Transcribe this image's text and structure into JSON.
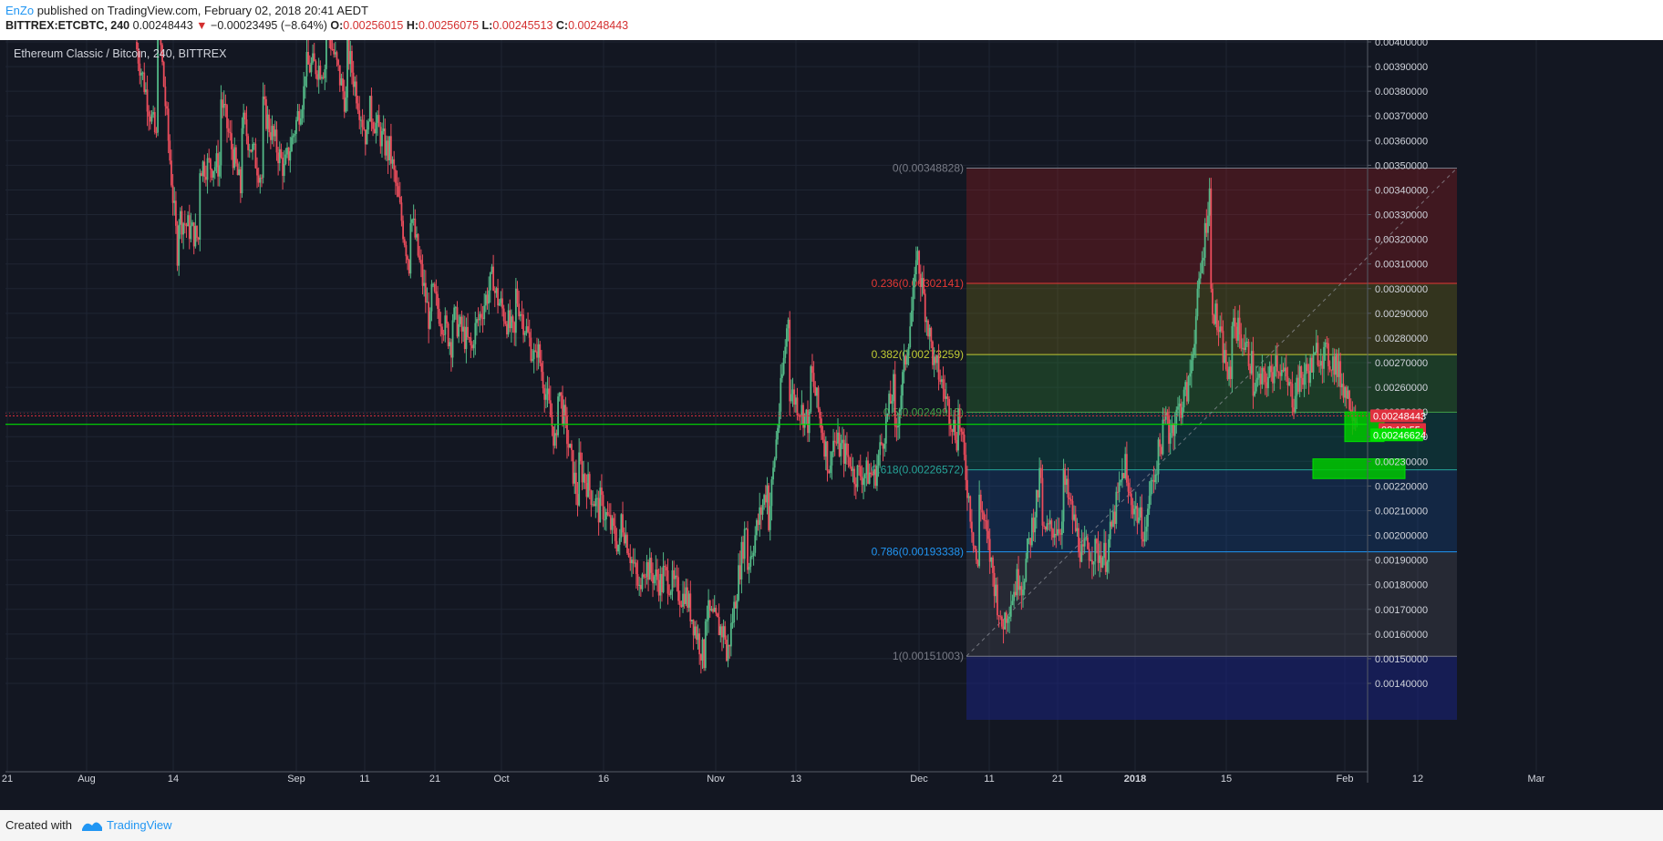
{
  "header": {
    "author": "EnZo",
    "published_text": "published on TradingView.com, February 02, 2018 20:41 AEDT",
    "symbol": "BITTREX:ETCBTC, 240",
    "last": "0.00248443",
    "change": "−0.00023495 (−8.64%)",
    "open_label": "O:",
    "open": "0.00256015",
    "high_label": "H:",
    "high": "0.00256075",
    "low_label": "L:",
    "low": "0.00245513",
    "close_label": "C:",
    "close": "0.00248443"
  },
  "chart_title": "Ethereum Classic / Bitcoin, 240, BITTREX",
  "footer": {
    "created_with": "Created with",
    "brand": "TradingView"
  },
  "colors": {
    "background": "#131722",
    "up": "#53b987",
    "down": "#eb4d5c",
    "price_line_red": "#e0303e",
    "price_line_green": "#00e000"
  },
  "chart_data": {
    "type": "candlestick",
    "ylim": [
      0.00135,
      0.0041
    ],
    "y_ticks": [
      "0.00400000",
      "0.00390000",
      "0.00380000",
      "0.00370000",
      "0.00360000",
      "0.00350000",
      "0.00340000",
      "0.00330000",
      "0.00320000",
      "0.00310000",
      "0.00300000",
      "0.00290000",
      "0.00280000",
      "0.00270000",
      "0.00260000",
      "0.00250000",
      "0.00240000",
      "0.00230000",
      "0.00220000",
      "0.00210000",
      "0.00200000",
      "0.00190000",
      "0.00180000",
      "0.00170000",
      "0.00160000",
      "0.00150000",
      "0.00140000"
    ],
    "x_ticks": [
      "21",
      "Aug",
      "14",
      "Sep",
      "11",
      "21",
      "Oct",
      "16",
      "Nov",
      "13",
      "Dec",
      "11",
      "21",
      "2018",
      "15",
      "Feb",
      "12",
      "Mar"
    ],
    "price_path": [
      [
        0.004,
        0.0038
      ],
      [
        0.0042,
        0.0036
      ],
      [
        0.0033,
        0.00315
      ],
      [
        0.0035,
        0.0032
      ],
      [
        0.0038,
        0.0035
      ],
      [
        0.0037,
        0.0034
      ],
      [
        0.00375,
        0.00345
      ],
      [
        0.00345,
        0.0035
      ],
      [
        0.0039,
        0.0038
      ],
      [
        0.0041,
        0.0039
      ],
      [
        0.004,
        0.00375
      ],
      [
        0.00375,
        0.0036
      ],
      [
        0.0036,
        0.00355
      ],
      [
        0.00335,
        0.0031
      ],
      [
        0.003,
        0.00285
      ],
      [
        0.0029,
        0.00278
      ],
      [
        0.0028,
        0.00275
      ],
      [
        0.003,
        0.00305
      ],
      [
        0.003,
        0.0028
      ],
      [
        0.0028,
        0.0027
      ],
      [
        0.00265,
        0.00235
      ],
      [
        0.0023,
        0.00215
      ],
      [
        0.00215,
        0.0021
      ],
      [
        0.0021,
        0.00195
      ],
      [
        0.0019,
        0.00175
      ],
      [
        0.00185,
        0.0018
      ],
      [
        0.0018,
        0.00175
      ],
      [
        0.0017,
        0.0015
      ],
      [
        0.00145,
        0.0016
      ],
      [
        0.00185,
        0.00205
      ],
      [
        0.002,
        0.0022
      ],
      [
        0.0026,
        0.0029
      ],
      [
        0.0027,
        0.00245
      ],
      [
        0.0024,
        0.00225
      ],
      [
        0.00225,
        0.0023
      ],
      [
        0.0022,
        0.00225
      ],
      [
        0.00235,
        0.0026
      ],
      [
        0.0032,
        0.003
      ],
      [
        0.0027,
        0.00265
      ],
      [
        0.00255,
        0.0024
      ],
      [
        0.0022,
        0.00185
      ],
      [
        0.0016,
        0.0017
      ],
      [
        0.00175,
        0.00185
      ],
      [
        0.002,
        0.00225
      ],
      [
        0.00225,
        0.00205
      ],
      [
        0.00195,
        0.0019
      ],
      [
        0.00188,
        0.00192
      ],
      [
        0.0022,
        0.0023
      ],
      [
        0.0021,
        0.002
      ],
      [
        0.0024,
        0.0025
      ],
      [
        0.0026,
        0.0026
      ],
      [
        0.003,
        0.0034
      ],
      [
        0.0029,
        0.0026
      ],
      [
        0.0026,
        0.0027
      ],
      [
        0.00275,
        0.00265
      ],
      [
        0.0026,
        0.00255
      ],
      [
        0.00275,
        0.0027
      ],
      [
        0.00268,
        0.0027
      ],
      [
        0.00255,
        0.00248
      ]
    ],
    "fib_levels": [
      {
        "ratio": "0",
        "label": "0(0.00348828)",
        "price": 0.00348828,
        "color": "#787b86"
      },
      {
        "ratio": "0.236",
        "label": "0.236(0.00302141)",
        "price": 0.00302141,
        "color": "#e53935"
      },
      {
        "ratio": "0.382",
        "label": "0.382(0.00273259)",
        "price": 0.00273259,
        "color": "#c0ca33"
      },
      {
        "ratio": "0.5",
        "label": "0.5(0.00249915)",
        "price": 0.00249915,
        "color": "#43a047"
      },
      {
        "ratio": "0.618",
        "label": "0.618(0.00226572)",
        "price": 0.00226572,
        "color": "#26a69a"
      },
      {
        "ratio": "0.786",
        "label": "0.786(0.00193338)",
        "price": 0.00193338,
        "color": "#2196f3"
      },
      {
        "ratio": "1",
        "label": "1(0.00151003)",
        "price": 0.00151003,
        "color": "#787b86"
      }
    ],
    "price_labels": [
      {
        "text": "0.00248443",
        "color": "#e0303e",
        "price": 0.00248443
      },
      {
        "text": "02:18:55",
        "color": "#e0303e",
        "price": 0.00248443
      },
      {
        "text": "0.00246624",
        "color": "#00e000",
        "price": 0.00246624
      }
    ],
    "boxes": [
      {
        "price_top": 0.0025,
        "price_bottom": 0.00238
      },
      {
        "price_top": 0.00231,
        "price_bottom": 0.00223
      }
    ]
  }
}
